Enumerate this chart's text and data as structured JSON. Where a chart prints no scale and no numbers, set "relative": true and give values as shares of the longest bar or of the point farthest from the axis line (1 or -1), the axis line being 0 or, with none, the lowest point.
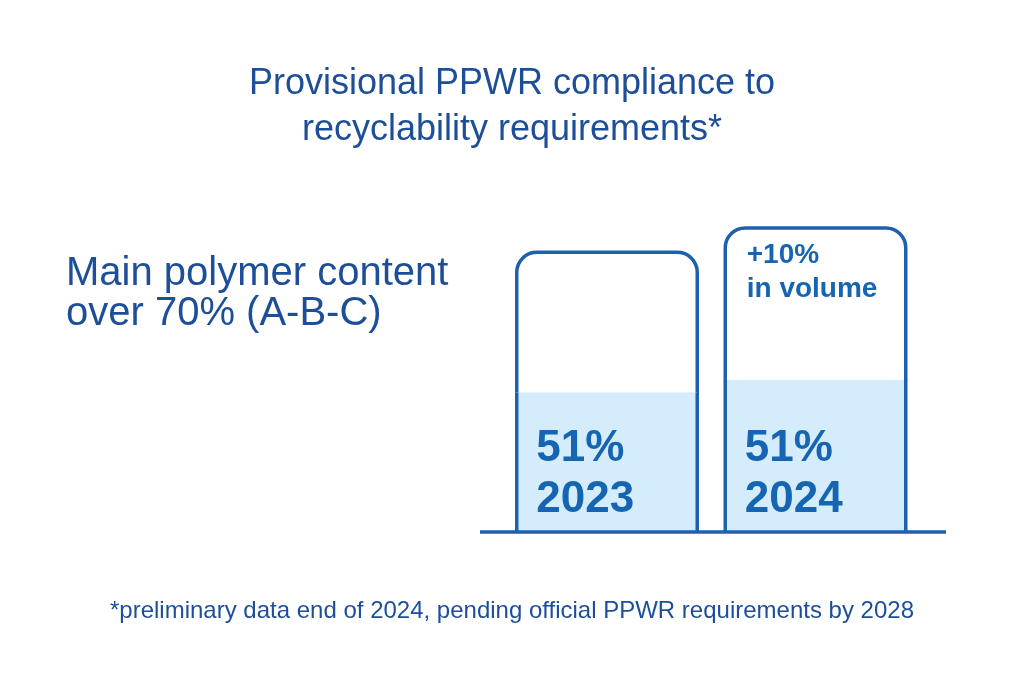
{
  "chart_data": {
    "type": "bar",
    "title": "Provisional PPWR compliance to recyclability requirements*",
    "ylabel": "Main polymer content over 70% (A-B-C)",
    "categories": [
      "2023",
      "2024"
    ],
    "stacked": true,
    "relative": true,
    "series": [
      {
        "color": "#d4ecfb",
        "values": [
          0.46,
          0.5
        ]
      },
      {
        "color": "#ffffff",
        "values": [
          0.46,
          0.5
        ]
      }
    ],
    "annotations": [
      {
        "text": "+10%\nin volume",
        "x": "2024",
        "y": 1
      },
      "51%",
      "51%",
      "*preliminary data end of 2024, pending official PPWR requirements by 2028"
    ]
  }
}
